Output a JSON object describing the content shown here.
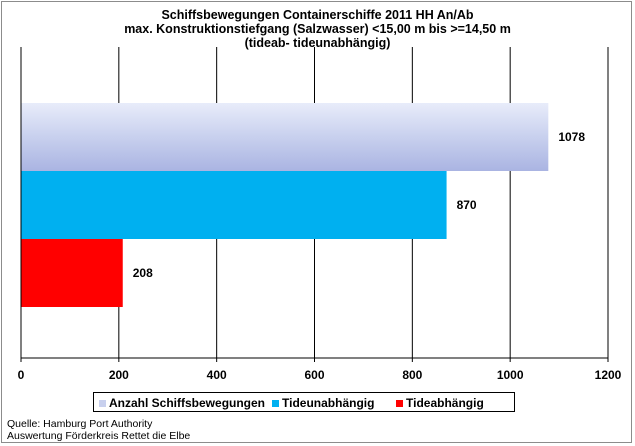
{
  "title_lines": [
    "Schiffsbewegungen  Containerschiffe  2011 HH An/Ab",
    "max. Konstruktionstiefgang  (Salzwasser)  <15,00 m bis >=14,50 m",
    "(tideab- tideunabhängig)"
  ],
  "source_lines": [
    "Quelle: Hamburg Port Authority",
    "Auswertung Förderkreis Rettet die Elbe"
  ],
  "colors": {
    "anzahl": "#c8d0ee",
    "tideunabhaengig": "#00b0f0",
    "tideabhaengig": "#ff0000"
  },
  "chart_data": {
    "type": "bar",
    "orientation": "horizontal",
    "series": [
      {
        "name": "Anzahl Schiffsbewegungen",
        "values": [
          1078
        ]
      },
      {
        "name": "Tideunabhängig",
        "values": [
          870
        ]
      },
      {
        "name": "Tideabhängig",
        "values": [
          208
        ]
      }
    ],
    "data_labels": [
      "1078",
      "870",
      "208"
    ],
    "xlim": [
      0,
      1200
    ],
    "x_ticks": [
      "0",
      "200",
      "400",
      "600",
      "800",
      "1000",
      "1200"
    ],
    "grid": true,
    "legend_position": "bottom"
  }
}
